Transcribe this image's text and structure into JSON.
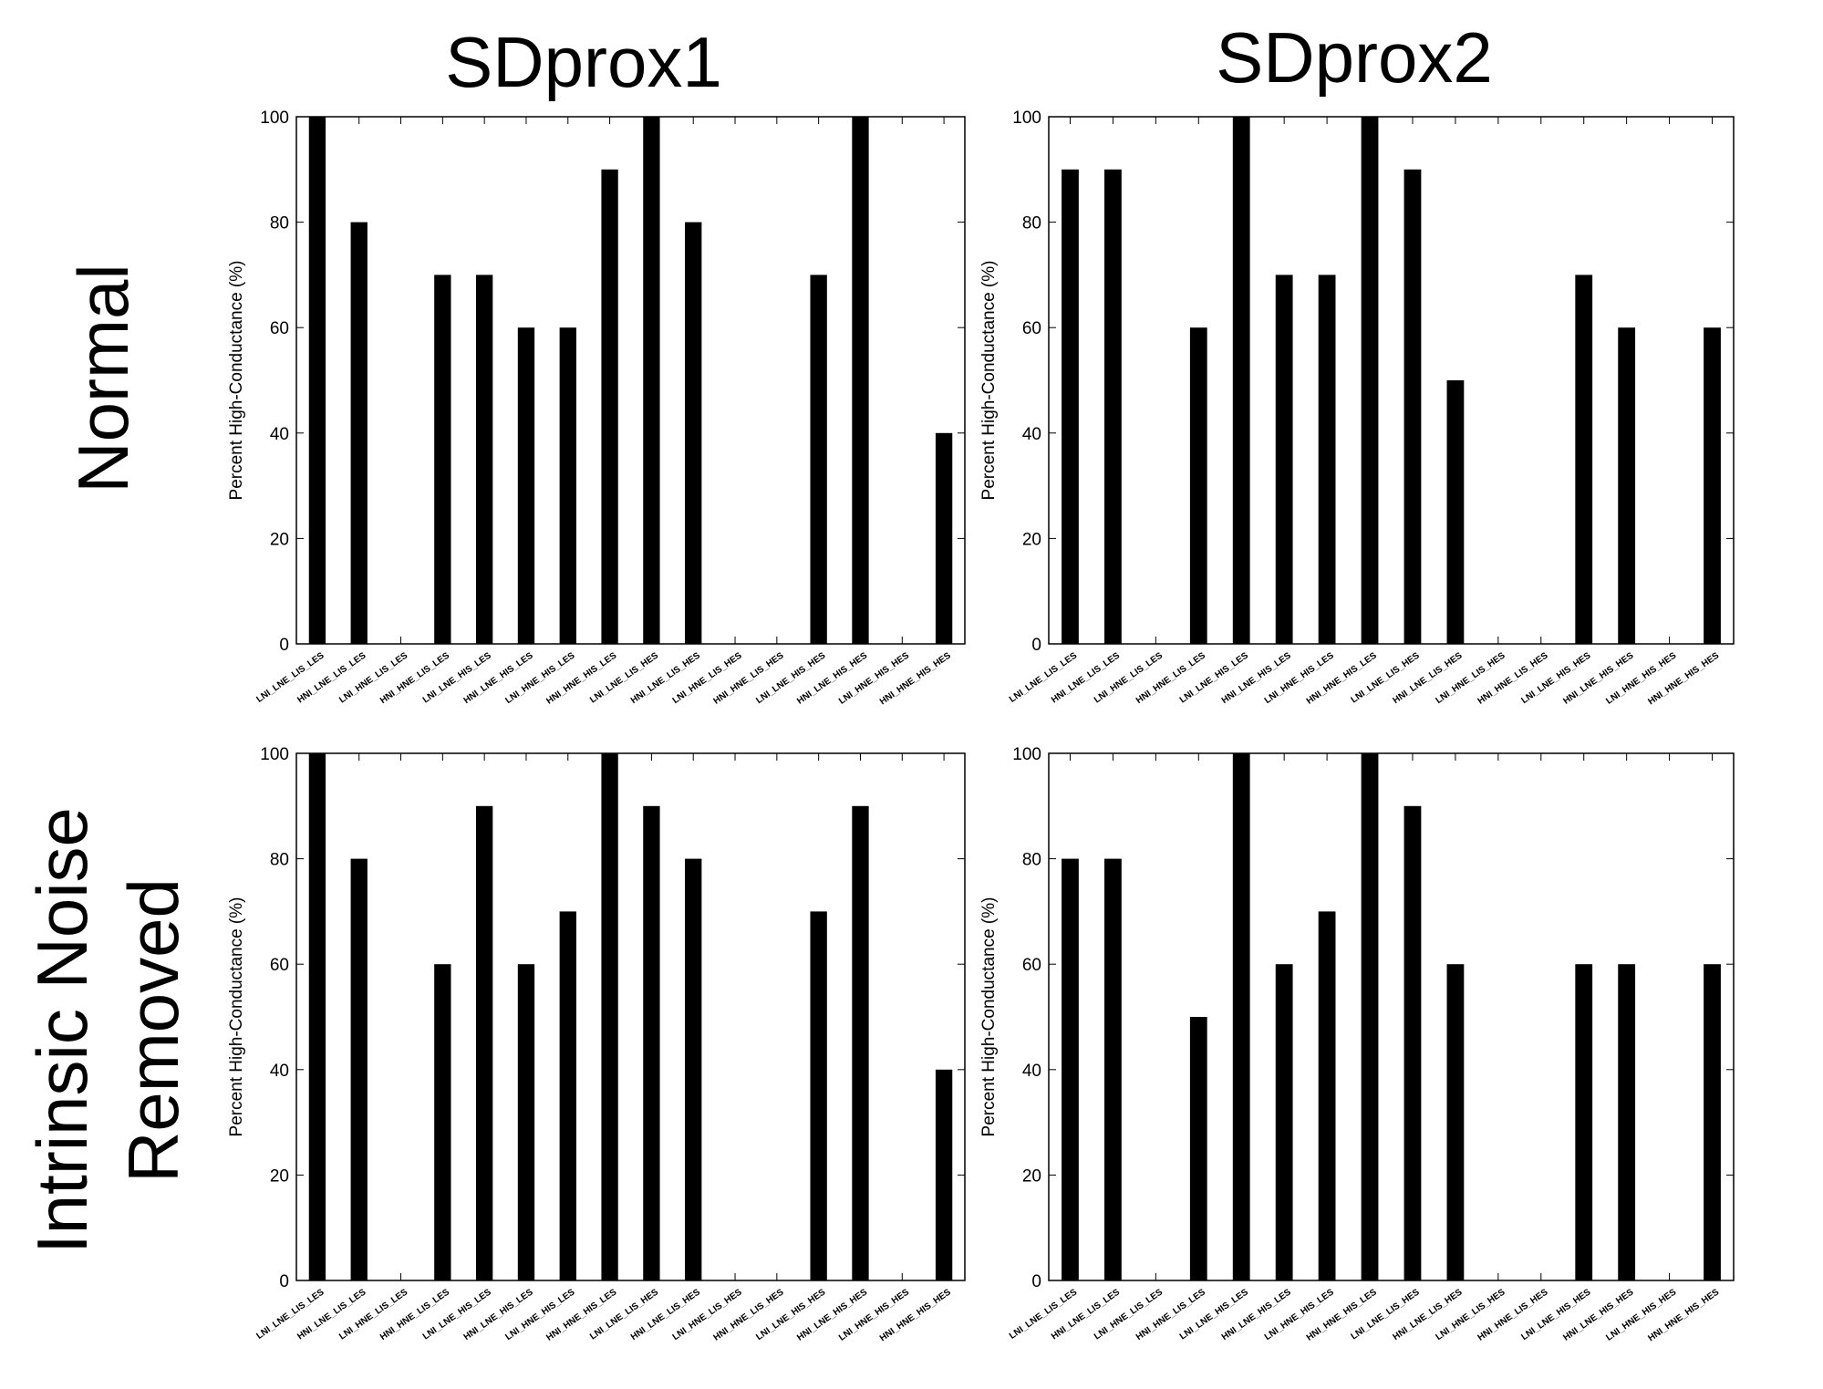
{
  "column_titles": [
    "SDprox1",
    "SDprox2"
  ],
  "row_titles": [
    [
      "Normal"
    ],
    [
      "Intrinsic Noise",
      "Removed"
    ]
  ],
  "colors": {
    "bar": "#000000",
    "axes": "#000000",
    "background": "#ffffff"
  },
  "chart_data": [
    {
      "type": "bar",
      "title": "",
      "ylabel": "Percent High-Conductance (%)",
      "xlabel": "",
      "ylim": [
        0,
        100
      ],
      "yticks": [
        0,
        20,
        40,
        60,
        80,
        100
      ],
      "grid": false,
      "categories": [
        "LNI_LNE_LIS_LES",
        "HNI_LNE_LIS_LES",
        "LNI_HNE_LIS_LES",
        "HNI_HNE_LIS_LES",
        "LNI_LNE_HIS_LES",
        "HNI_LNE_HIS_LES",
        "LNI_HNE_HIS_LES",
        "HNI_HNE_HIS_LES",
        "LNI_LNE_LIS_HES",
        "HNI_LNE_LIS_HES",
        "LNI_HNE_LIS_HES",
        "HNI_HNE_LIS_HES",
        "LNI_LNE_HIS_HES",
        "HNI_LNE_HIS_HES",
        "LNI_HNE_HIS_HES",
        "HNI_HNE_HIS_HES"
      ],
      "values": [
        100,
        80,
        0,
        70,
        70,
        60,
        60,
        90,
        100,
        80,
        0,
        0,
        70,
        100,
        0,
        40
      ]
    },
    {
      "type": "bar",
      "title": "",
      "ylabel": "Percent High-Conductance (%)",
      "xlabel": "",
      "ylim": [
        0,
        100
      ],
      "yticks": [
        0,
        20,
        40,
        60,
        80,
        100
      ],
      "grid": false,
      "categories": [
        "LNI_LNE_LIS_LES",
        "HNI_LNE_LIS_LES",
        "LNI_HNE_LIS_LES",
        "HNI_HNE_LIS_LES",
        "LNI_LNE_HIS_LES",
        "HNI_LNE_HIS_LES",
        "LNI_HNE_HIS_LES",
        "HNI_HNE_HIS_LES",
        "LNI_LNE_LIS_HES",
        "HNI_LNE_LIS_HES",
        "LNI_HNE_LIS_HES",
        "HNI_HNE_LIS_HES",
        "LNI_LNE_HIS_HES",
        "HNI_LNE_HIS_HES",
        "LNI_HNE_HIS_HES",
        "HNI_HNE_HIS_HES"
      ],
      "values": [
        90,
        90,
        0,
        60,
        100,
        70,
        70,
        100,
        90,
        50,
        0,
        0,
        70,
        60,
        0,
        60
      ]
    },
    {
      "type": "bar",
      "title": "",
      "ylabel": "Percent High-Conductance (%)",
      "xlabel": "",
      "ylim": [
        0,
        100
      ],
      "yticks": [
        0,
        20,
        40,
        60,
        80,
        100
      ],
      "grid": false,
      "categories": [
        "LNI_LNE_LIS_LES",
        "HNI_LNE_LIS_LES",
        "LNI_HNE_LIS_LES",
        "HNI_HNE_LIS_LES",
        "LNI_LNE_HIS_LES",
        "HNI_LNE_HIS_LES",
        "LNI_HNE_HIS_LES",
        "HNI_HNE_HIS_LES",
        "LNI_LNE_LIS_HES",
        "HNI_LNE_LIS_HES",
        "LNI_HNE_LIS_HES",
        "HNI_HNE_LIS_HES",
        "LNI_LNE_HIS_HES",
        "HNI_LNE_HIS_HES",
        "LNI_HNE_HIS_HES",
        "HNI_HNE_HIS_HES"
      ],
      "values": [
        100,
        80,
        0,
        60,
        90,
        60,
        70,
        100,
        90,
        80,
        0,
        0,
        70,
        90,
        0,
        40
      ]
    },
    {
      "type": "bar",
      "title": "",
      "ylabel": "Percent High-Conductance (%)",
      "xlabel": "",
      "ylim": [
        0,
        100
      ],
      "yticks": [
        0,
        20,
        40,
        60,
        80,
        100
      ],
      "grid": false,
      "categories": [
        "LNI_LNE_LIS_LES",
        "HNI_LNE_LIS_LES",
        "LNI_HNE_LIS_LES",
        "HNI_HNE_LIS_LES",
        "LNI_LNE_HIS_LES",
        "HNI_LNE_HIS_LES",
        "LNI_HNE_HIS_LES",
        "HNI_HNE_HIS_LES",
        "LNI_LNE_LIS_HES",
        "HNI_LNE_LIS_HES",
        "LNI_HNE_LIS_HES",
        "HNI_HNE_LIS_HES",
        "LNI_LNE_HIS_HES",
        "HNI_LNE_HIS_HES",
        "LNI_HNE_HIS_HES",
        "HNI_HNE_HIS_HES"
      ],
      "values": [
        80,
        80,
        0,
        50,
        100,
        60,
        70,
        100,
        90,
        60,
        0,
        0,
        60,
        60,
        0,
        60
      ]
    }
  ]
}
